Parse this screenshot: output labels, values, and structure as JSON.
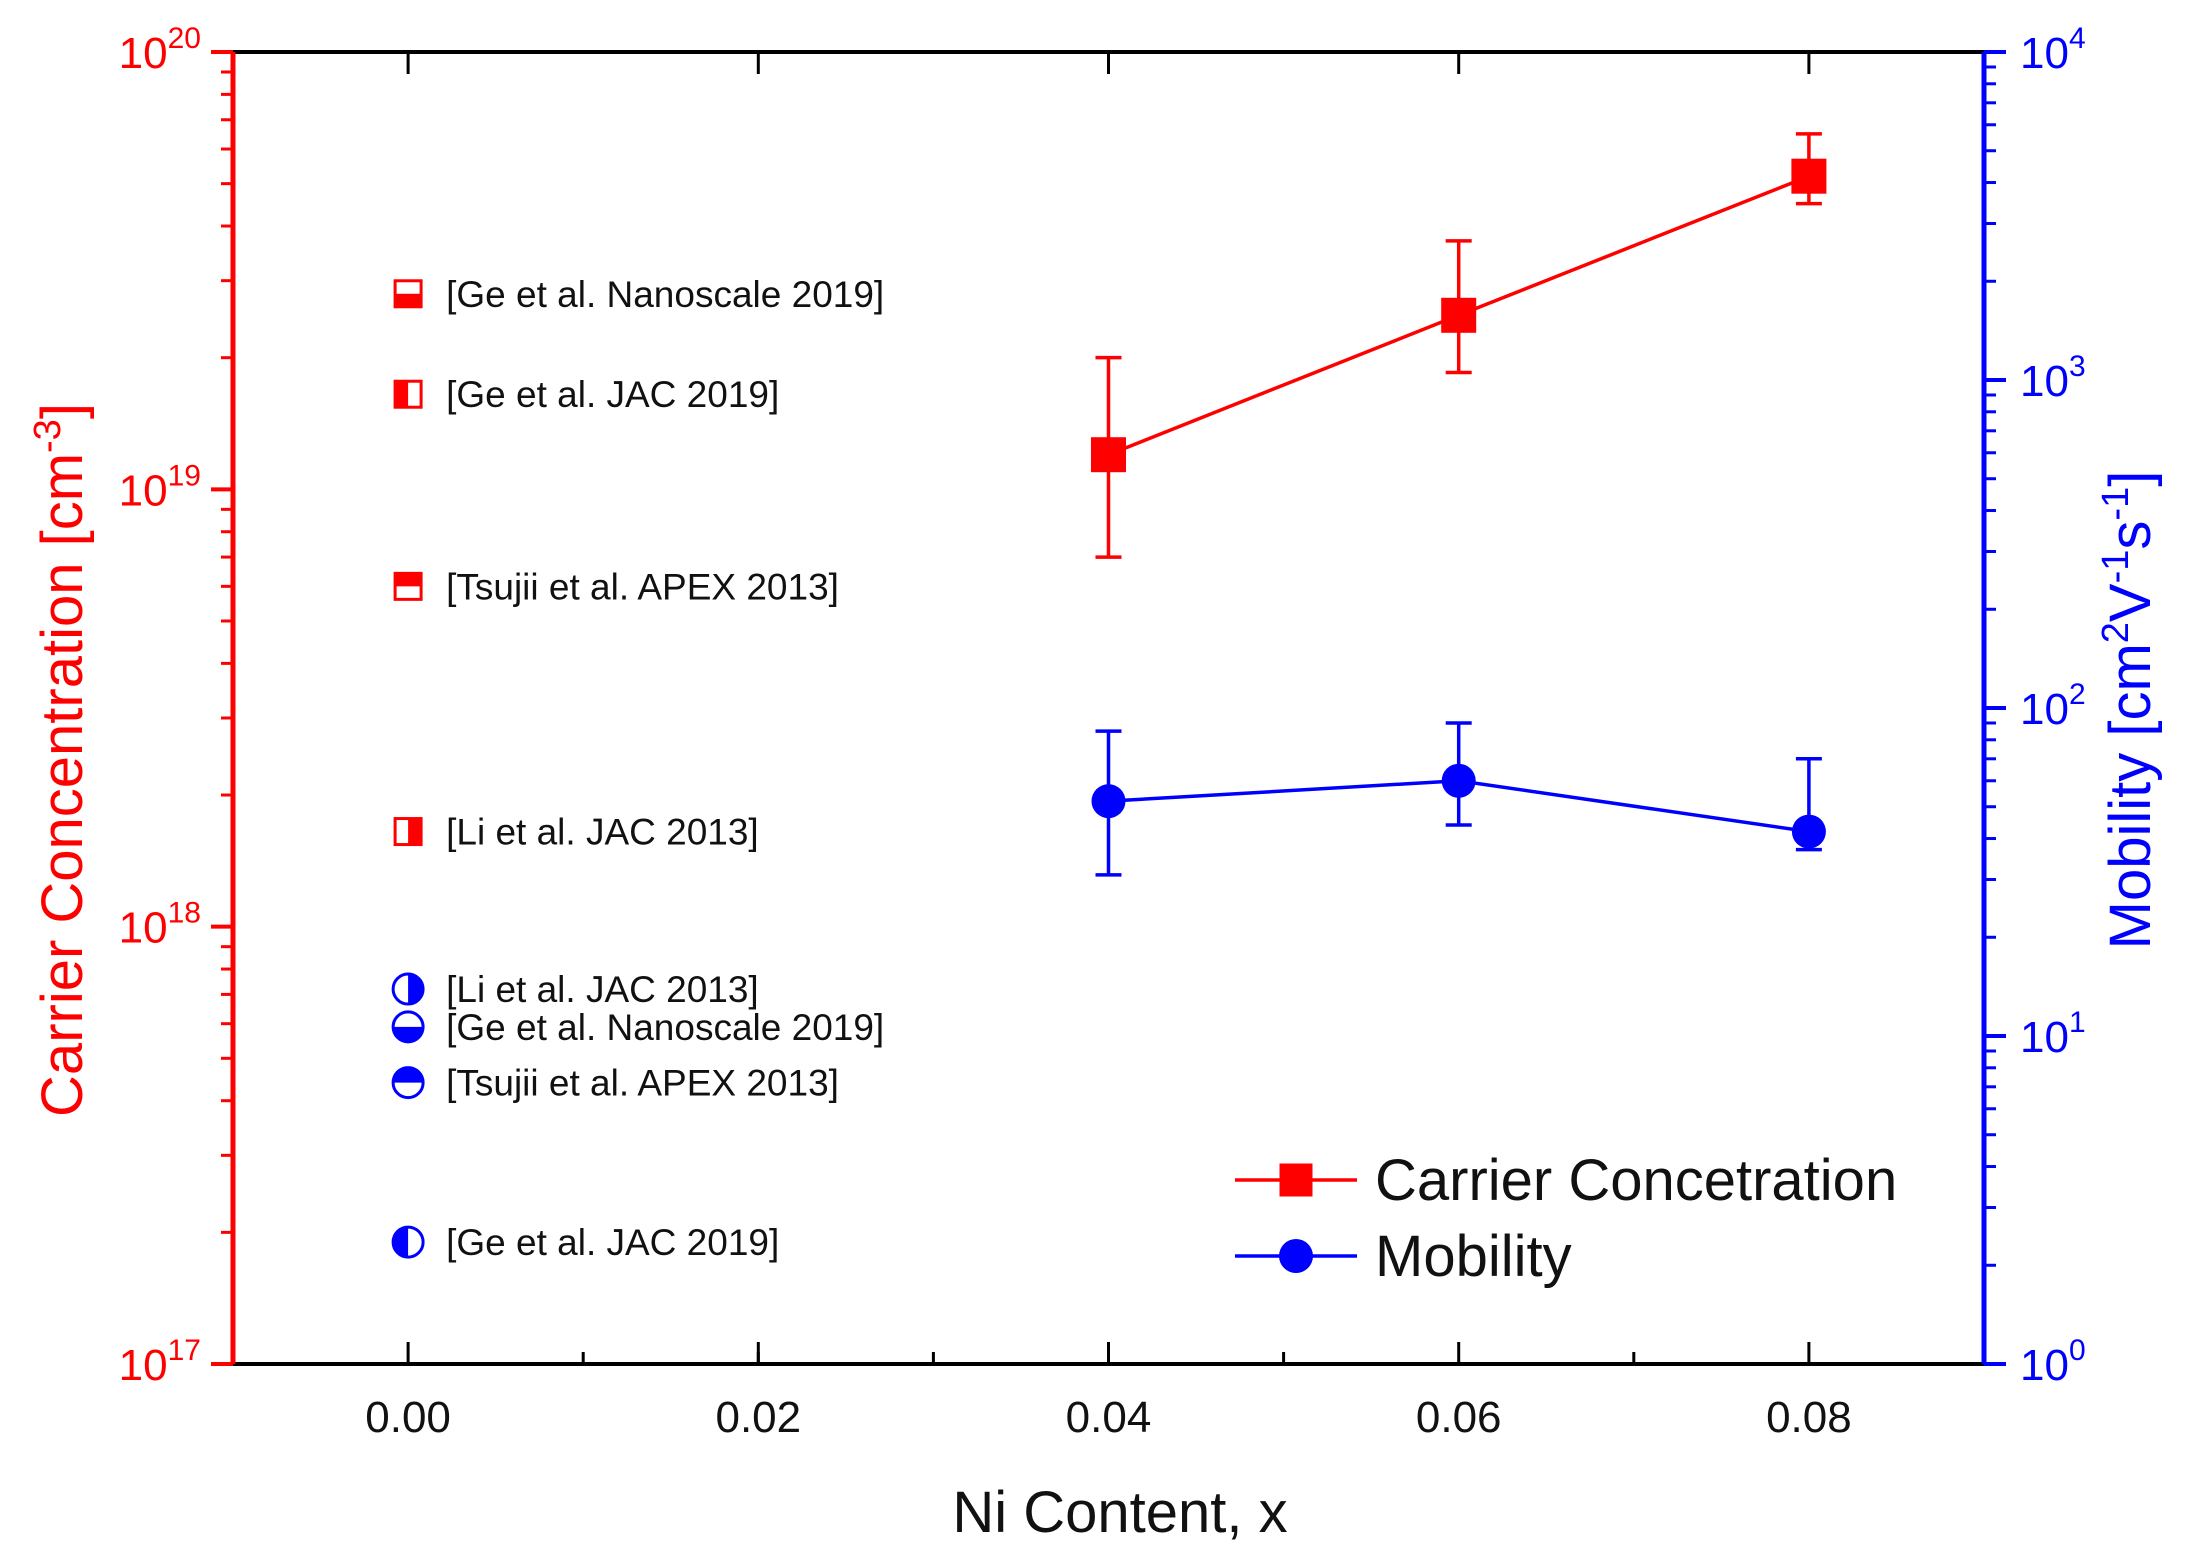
{
  "colors": {
    "carrier": "#ff0000",
    "mobility": "#0000ff",
    "frame": "#000000",
    "text": "#111111"
  },
  "chart_data": {
    "type": "scatter",
    "title": "",
    "xlabel": "Ni Content, x",
    "ylabel_left": {
      "main": "Carrier Concentration [cm",
      "sup": "-3",
      "tail": "]"
    },
    "ylabel_right": {
      "p1": "Mobility [cm",
      "s1": "2",
      "p2": "V",
      "s2": "-1",
      "p3": "s",
      "s3": "-1",
      "p4": "]"
    },
    "xlim": [
      -0.01,
      0.09
    ],
    "x_ticks": [
      0.0,
      0.02,
      0.04,
      0.06,
      0.08
    ],
    "x_tick_labels": [
      "0.00",
      "0.02",
      "0.04",
      "0.06",
      "0.08"
    ],
    "y_left": {
      "scale": "log",
      "lim": [
        1e+17,
        1e+20
      ],
      "ticks": [
        {
          "value": 1e+17,
          "base": "10",
          "exp": "17"
        },
        {
          "value": 1e+18,
          "base": "10",
          "exp": "18"
        },
        {
          "value": 1e+19,
          "base": "10",
          "exp": "19"
        },
        {
          "value": 1e+20,
          "base": "10",
          "exp": "20"
        }
      ]
    },
    "y_right": {
      "scale": "log",
      "lim": [
        1,
        10000
      ],
      "ticks": [
        {
          "value": 1,
          "base": "10",
          "exp": "0"
        },
        {
          "value": 10,
          "base": "10",
          "exp": "1"
        },
        {
          "value": 100,
          "base": "10",
          "exp": "2"
        },
        {
          "value": 1000,
          "base": "10",
          "exp": "3"
        },
        {
          "value": 10000,
          "base": "10",
          "exp": "4"
        }
      ]
    },
    "series": [
      {
        "name": "Carrier Concetration",
        "axis": "left",
        "marker": "square",
        "color": "#ff0000",
        "x": [
          0.04,
          0.06,
          0.08
        ],
        "y": [
          1.2e+19,
          2.5e+19,
          5.2e+19
        ],
        "err_low": [
          7e+18,
          1.85e+19,
          4.5e+19
        ],
        "err_high": [
          2e+19,
          3.7e+19,
          6.5e+19
        ]
      },
      {
        "name": "Mobility",
        "axis": "right",
        "marker": "circle",
        "color": "#0000ff",
        "x": [
          0.04,
          0.06,
          0.08
        ],
        "y": [
          52,
          60,
          42
        ],
        "err_low": [
          31,
          44,
          37
        ],
        "err_high": [
          85,
          90,
          70
        ]
      }
    ],
    "literature_points": [
      {
        "label": "[Ge et al. Nanoscale 2019]",
        "axis": "left",
        "marker": "square",
        "fill": "bottom",
        "x": 0.0,
        "y": 2.8e+19,
        "color": "#ff0000"
      },
      {
        "label": "[Ge et al. JAC 2019]",
        "axis": "left",
        "marker": "square",
        "fill": "left",
        "x": 0.0,
        "y": 1.65e+19,
        "color": "#ff0000"
      },
      {
        "label": "[Tsujii et al. APEX 2013]",
        "axis": "left",
        "marker": "square",
        "fill": "top",
        "x": 0.0,
        "y": 6e+18,
        "color": "#ff0000"
      },
      {
        "label": "[Li et al. JAC 2013]",
        "axis": "left",
        "marker": "square",
        "fill": "right",
        "x": 0.0,
        "y": 1.65e+18,
        "color": "#ff0000"
      },
      {
        "label": "[Li et al. JAC 2013]",
        "axis": "left",
        "marker": "circle",
        "fill": "right",
        "x": 0.0,
        "y": 7.2e+17,
        "color": "#0000ff"
      },
      {
        "label": "[Ge et al. Nanoscale 2019]",
        "axis": "left",
        "marker": "circle",
        "fill": "bottom",
        "x": 0.0,
        "y": 5.9e+17,
        "color": "#0000ff"
      },
      {
        "label": "[Tsujii et al. APEX 2013]",
        "axis": "left",
        "marker": "circle",
        "fill": "top",
        "x": 0.0,
        "y": 4.4e+17,
        "color": "#0000ff"
      },
      {
        "label": "[Ge et al. JAC 2019]",
        "axis": "left",
        "marker": "circle",
        "fill": "left",
        "x": 0.0,
        "y": 1.9e+17,
        "color": "#0000ff"
      }
    ],
    "legend": {
      "position": "bottom-right",
      "entries": [
        {
          "label": "Carrier Concetration",
          "marker": "square",
          "color": "#ff0000"
        },
        {
          "label": "Mobility",
          "marker": "circle",
          "color": "#0000ff"
        }
      ]
    },
    "grid": false
  }
}
